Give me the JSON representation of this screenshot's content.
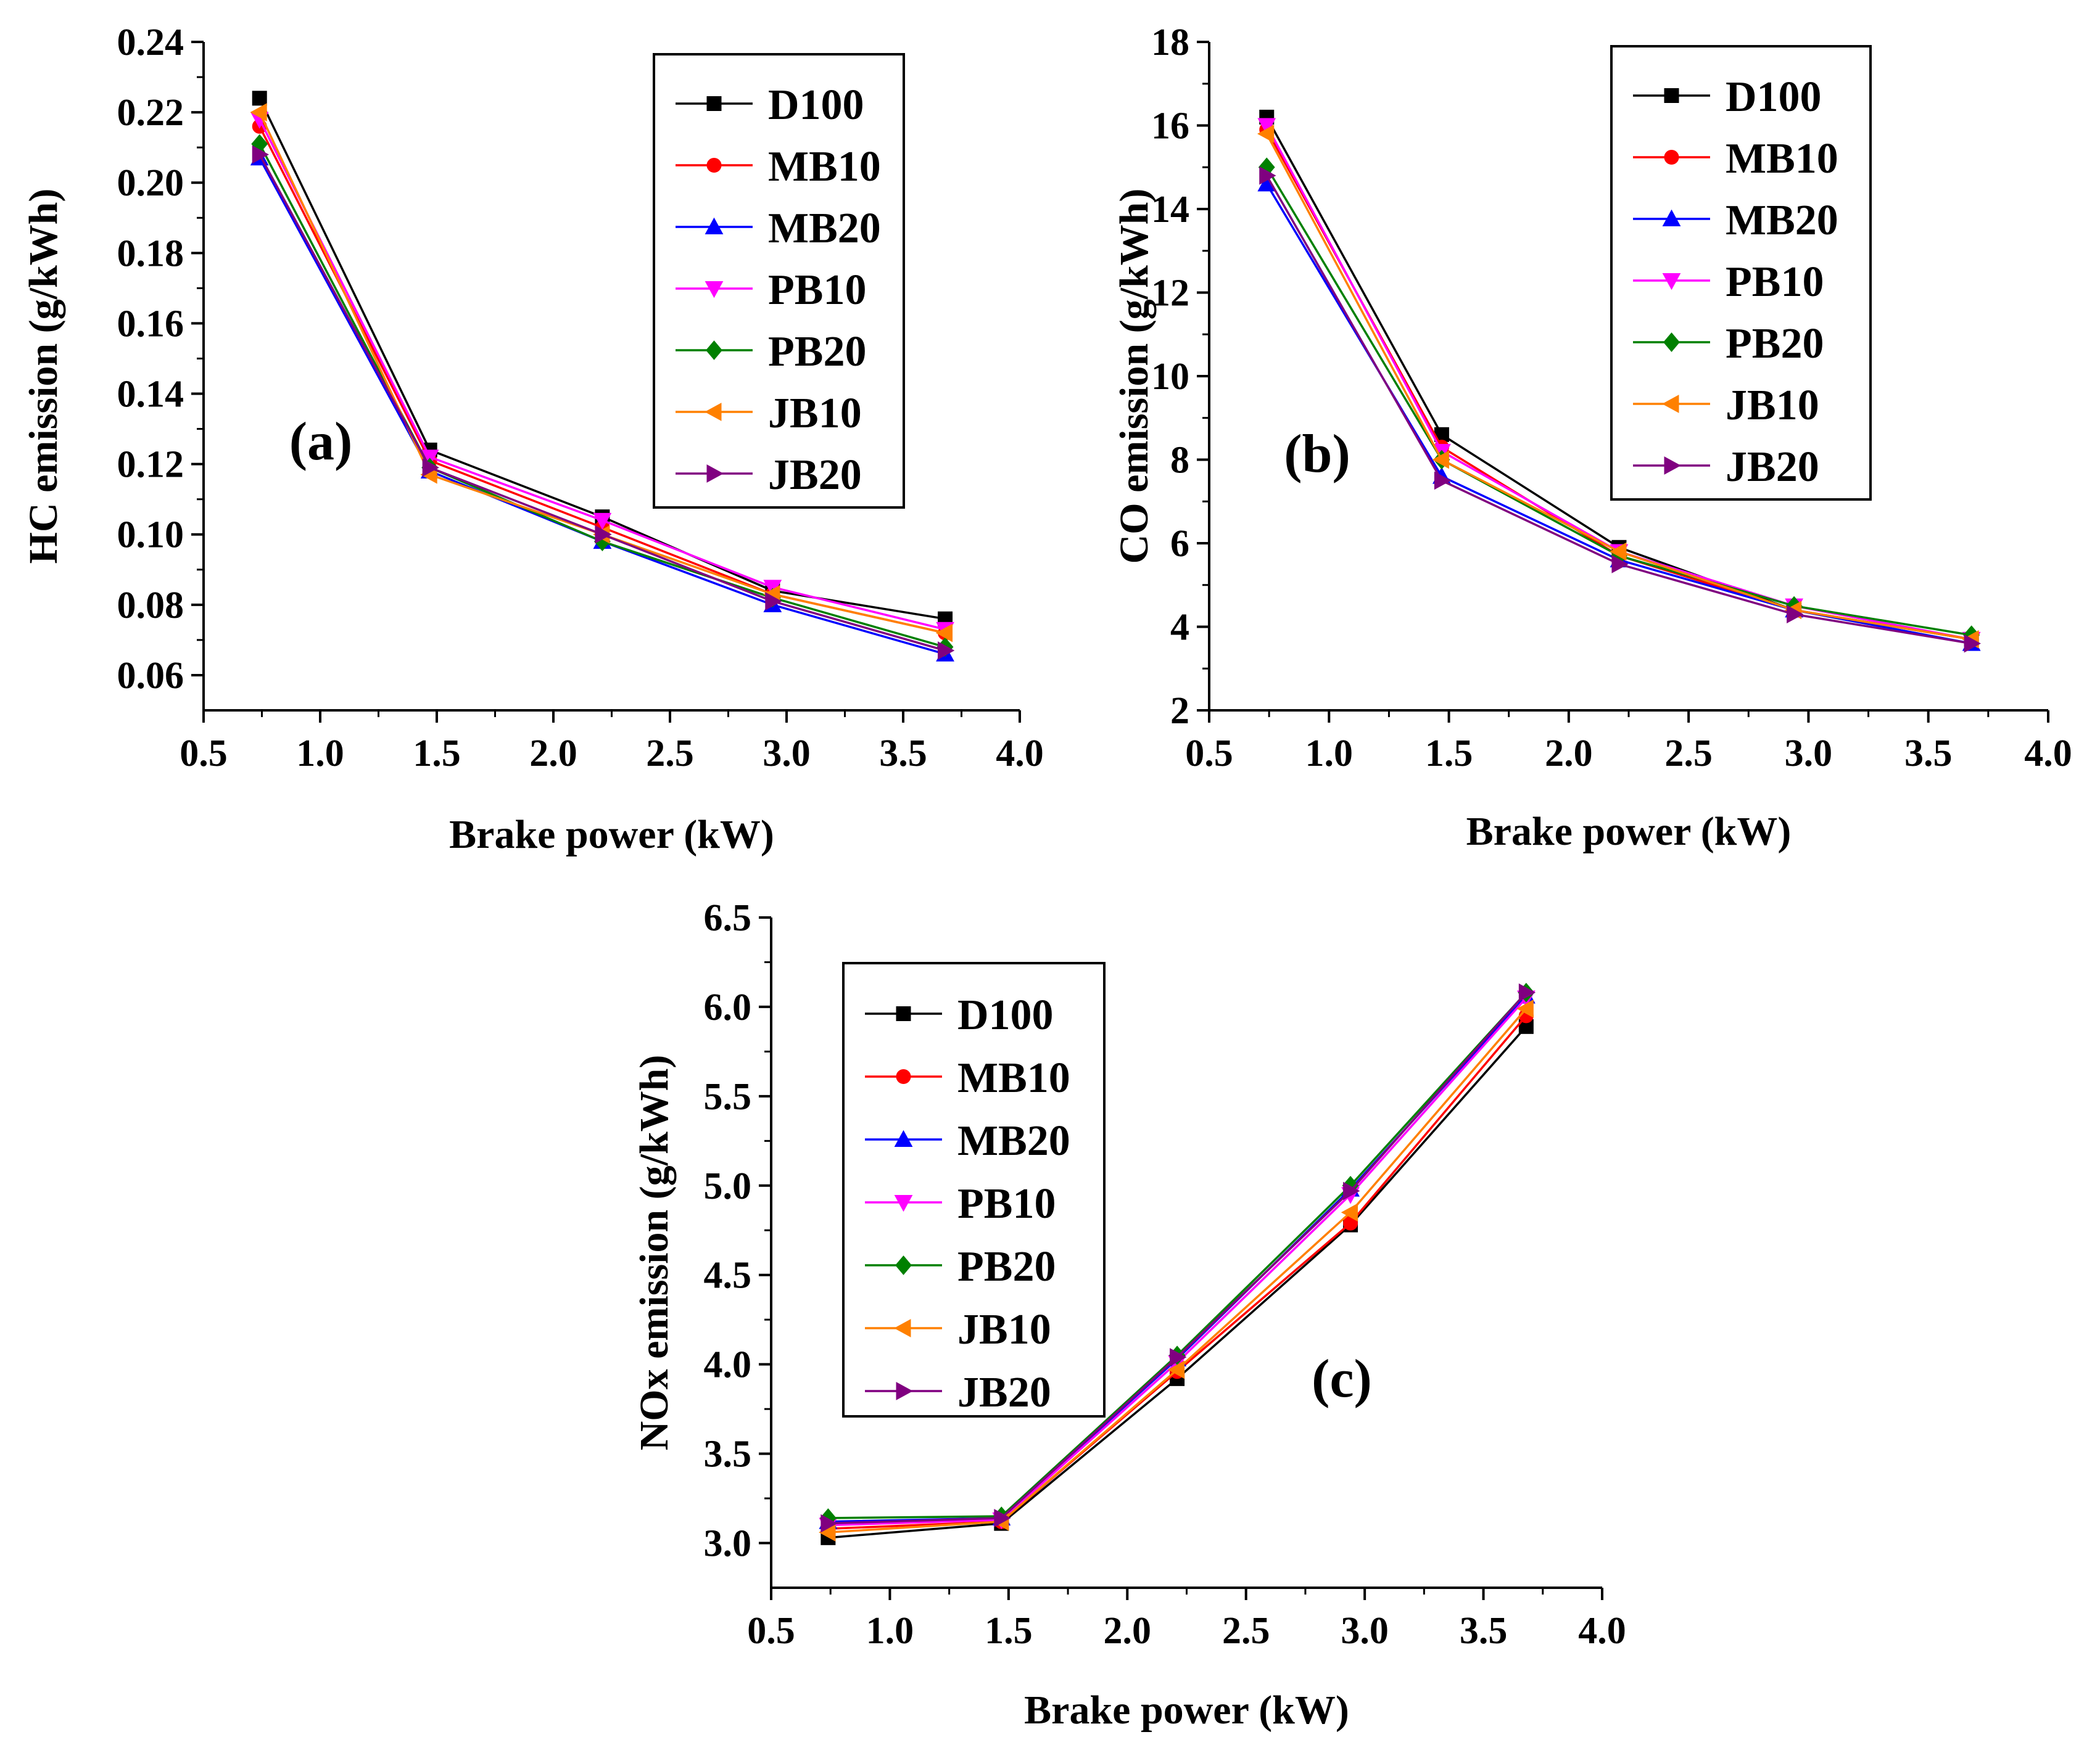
{
  "figure": {
    "colors": {
      "D100": "#000000",
      "MB10": "#ff0000",
      "MB20": "#0000ff",
      "PB10": "#ff00ff",
      "PB20": "#008000",
      "JB10": "#ff8000",
      "JB20": "#800080"
    }
  },
  "chart_data": [
    {
      "type": "line",
      "panel_label": "(a)",
      "xlabel": "Brake power (kW)",
      "ylabel": "HC emission (g/kWh)",
      "xlim": [
        0.5,
        4.0
      ],
      "ylim": [
        0.05,
        0.24
      ],
      "xticks": [
        "0.5",
        "1.0",
        "1.5",
        "2.0",
        "2.5",
        "3.0",
        "3.5",
        "4.0"
      ],
      "yticks": [
        "0.06",
        "0.08",
        "0.10",
        "0.12",
        "0.14",
        "0.16",
        "0.18",
        "0.20",
        "0.22",
        "0.24"
      ],
      "legend_position": "top-right",
      "x": [
        0.74,
        1.47,
        2.21,
        2.94,
        3.68
      ],
      "series": [
        {
          "name": "D100",
          "marker": "square",
          "values": [
            0.224,
            0.124,
            0.105,
            0.084,
            0.076
          ]
        },
        {
          "name": "MB10",
          "marker": "circle",
          "values": [
            0.216,
            0.121,
            0.102,
            0.083,
            0.072
          ]
        },
        {
          "name": "MB20",
          "marker": "triangle-up",
          "values": [
            0.207,
            0.118,
            0.098,
            0.08,
            0.066
          ]
        },
        {
          "name": "PB10",
          "marker": "triangle-down",
          "values": [
            0.218,
            0.122,
            0.104,
            0.085,
            0.073
          ]
        },
        {
          "name": "PB20",
          "marker": "diamond",
          "values": [
            0.211,
            0.119,
            0.098,
            0.082,
            0.068
          ]
        },
        {
          "name": "JB10",
          "marker": "triangle-left",
          "values": [
            0.22,
            0.117,
            0.1,
            0.083,
            0.072
          ]
        },
        {
          "name": "JB20",
          "marker": "triangle-right",
          "values": [
            0.208,
            0.119,
            0.1,
            0.081,
            0.067
          ]
        }
      ]
    },
    {
      "type": "line",
      "panel_label": "(b)",
      "xlabel": "Brake power (kW)",
      "ylabel": "CO emission (g/kWh)",
      "xlim": [
        0.5,
        4.0
      ],
      "ylim": [
        2,
        18
      ],
      "xticks": [
        "0.5",
        "1.0",
        "1.5",
        "2.0",
        "2.5",
        "3.0",
        "3.5",
        "4.0"
      ],
      "yticks": [
        "2",
        "4",
        "6",
        "8",
        "10",
        "12",
        "14",
        "16",
        "18"
      ],
      "legend_position": "top-right",
      "x": [
        0.74,
        1.47,
        2.21,
        2.94,
        3.68
      ],
      "series": [
        {
          "name": "D100",
          "marker": "square",
          "values": [
            16.2,
            8.6,
            5.9,
            4.4,
            3.7
          ]
        },
        {
          "name": "MB10",
          "marker": "circle",
          "values": [
            15.9,
            8.3,
            5.7,
            4.4,
            3.7
          ]
        },
        {
          "name": "MB20",
          "marker": "triangle-up",
          "values": [
            14.6,
            7.6,
            5.6,
            4.4,
            3.6
          ]
        },
        {
          "name": "PB10",
          "marker": "triangle-down",
          "values": [
            16.0,
            8.2,
            5.8,
            4.5,
            3.7
          ]
        },
        {
          "name": "PB20",
          "marker": "diamond",
          "values": [
            15.0,
            8.0,
            5.7,
            4.5,
            3.8
          ]
        },
        {
          "name": "JB10",
          "marker": "triangle-left",
          "values": [
            15.8,
            8.0,
            5.8,
            4.4,
            3.7
          ]
        },
        {
          "name": "JB20",
          "marker": "triangle-right",
          "values": [
            14.8,
            7.5,
            5.5,
            4.3,
            3.6
          ]
        }
      ]
    },
    {
      "type": "line",
      "panel_label": "(c)",
      "xlabel": "Brake power (kW)",
      "ylabel": "NOx emission (g/kWh)",
      "xlim": [
        0.5,
        4.0
      ],
      "ylim": [
        2.75,
        6.5
      ],
      "xticks": [
        "0.5",
        "1.0",
        "1.5",
        "2.0",
        "2.5",
        "3.0",
        "3.5",
        "4.0"
      ],
      "yticks": [
        "3.0",
        "3.5",
        "4.0",
        "4.5",
        "5.0",
        "5.5",
        "6.0",
        "6.5"
      ],
      "legend_position": "top-left",
      "x": [
        0.74,
        1.47,
        2.21,
        2.94,
        3.68
      ],
      "series": [
        {
          "name": "D100",
          "marker": "square",
          "values": [
            3.03,
            3.11,
            3.92,
            4.78,
            5.89
          ]
        },
        {
          "name": "MB10",
          "marker": "circle",
          "values": [
            3.08,
            3.12,
            3.96,
            4.79,
            5.95
          ]
        },
        {
          "name": "MB20",
          "marker": "triangle-up",
          "values": [
            3.12,
            3.14,
            4.03,
            4.98,
            6.06
          ]
        },
        {
          "name": "PB10",
          "marker": "triangle-down",
          "values": [
            3.1,
            3.13,
            4.01,
            4.95,
            6.05
          ]
        },
        {
          "name": "PB20",
          "marker": "diamond",
          "values": [
            3.14,
            3.15,
            4.05,
            5.0,
            6.08
          ]
        },
        {
          "name": "JB10",
          "marker": "triangle-left",
          "values": [
            3.06,
            3.12,
            3.97,
            4.85,
            5.99
          ]
        },
        {
          "name": "JB20",
          "marker": "triangle-right",
          "values": [
            3.11,
            3.14,
            4.04,
            4.97,
            6.08
          ]
        }
      ]
    }
  ]
}
